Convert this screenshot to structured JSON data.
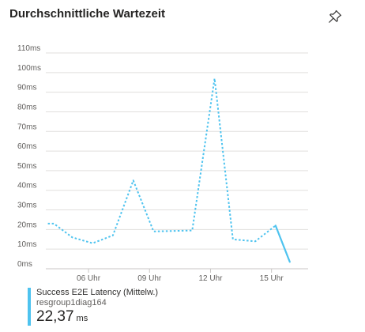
{
  "tile": {
    "title": "Durchschnittliche Wartezeit",
    "pin_icon": "pin-icon"
  },
  "legend": {
    "metric": "Success E2E Latency (Mittelw.)",
    "resource": "resgroup1diag164",
    "value": "22,37",
    "unit": "ms",
    "color": "#4ec3ef"
  },
  "chart_data": {
    "type": "line",
    "title": "Durchschnittliche Wartezeit",
    "x_ticks": [
      {
        "label": "06 Uhr",
        "hour": 6
      },
      {
        "label": "09 Uhr",
        "hour": 9
      },
      {
        "label": "12 Uhr",
        "hour": 12
      },
      {
        "label": "15 Uhr",
        "hour": 15
      }
    ],
    "xlim": [
      3.9,
      16.8
    ],
    "y_ticks": [
      "0ms",
      "10ms",
      "20ms",
      "30ms",
      "40ms",
      "50ms",
      "60ms",
      "70ms",
      "80ms",
      "90ms",
      "100ms",
      "110ms"
    ],
    "ylim": [
      0,
      110
    ],
    "grid": true,
    "series": [
      {
        "name": "Success E2E Latency (Mittelw.)",
        "color": "#4ec3ef",
        "dotted_points": [
          {
            "hour": 4.0,
            "value": 23
          },
          {
            "hour": 4.3,
            "value": 23
          },
          {
            "hour": 5.2,
            "value": 16
          },
          {
            "hour": 6.2,
            "value": 13
          },
          {
            "hour": 7.2,
            "value": 17
          },
          {
            "hour": 8.2,
            "value": 45
          },
          {
            "hour": 9.2,
            "value": 19
          },
          {
            "hour": 11.1,
            "value": 19.5
          },
          {
            "hour": 12.2,
            "value": 97
          },
          {
            "hour": 13.1,
            "value": 15
          },
          {
            "hour": 14.2,
            "value": 14
          },
          {
            "hour": 15.2,
            "value": 22
          }
        ],
        "solid_points": [
          {
            "hour": 15.2,
            "value": 22
          },
          {
            "hour": 15.9,
            "value": 3.5
          }
        ]
      }
    ]
  }
}
